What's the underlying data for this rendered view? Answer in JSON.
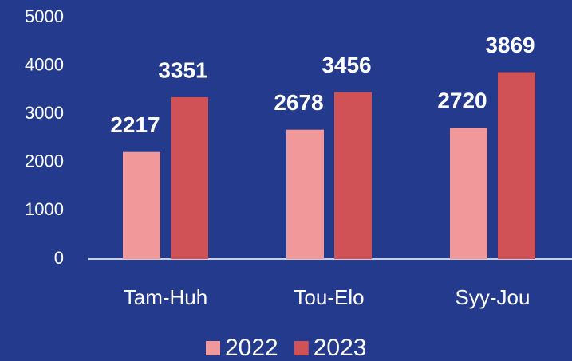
{
  "chart_data": {
    "type": "bar",
    "categories": [
      "Tam-Huh",
      "Tou-Elo",
      "Syy-Jou"
    ],
    "series": [
      {
        "name": "2022",
        "color": "#f0989a",
        "values": [
          2217,
          2678,
          2720
        ]
      },
      {
        "name": "2023",
        "color": "#d05256",
        "values": [
          3351,
          3456,
          3869
        ]
      }
    ],
    "ylim": [
      0,
      5000
    ],
    "yticks": [
      0,
      1000,
      2000,
      3000,
      4000,
      5000
    ],
    "grid": false,
    "legend": "bottom"
  }
}
